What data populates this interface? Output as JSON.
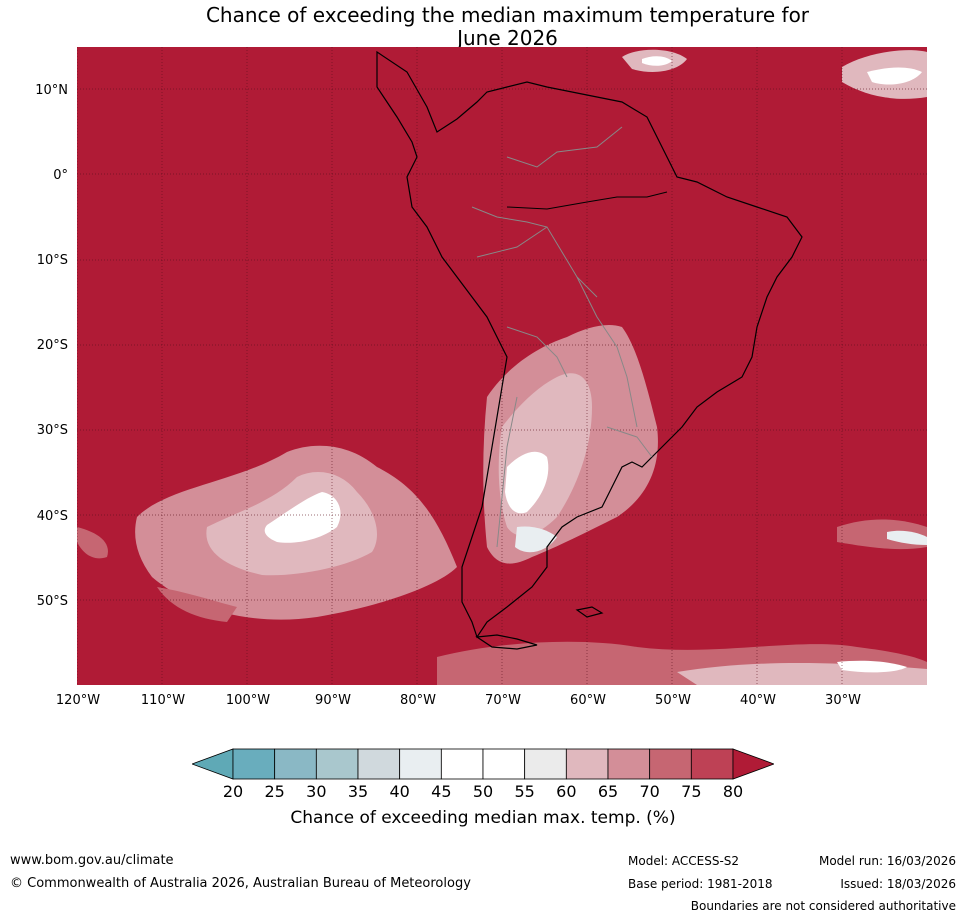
{
  "title": {
    "line1": "Chance of exceeding the median maximum temperature for",
    "line2": "June 2026"
  },
  "map": {
    "latitude_labels": [
      "10°N",
      "0°",
      "10°S",
      "20°S",
      "30°S",
      "40°S",
      "50°S"
    ],
    "longitude_labels": [
      "120°W",
      "110°W",
      "100°W",
      "90°W",
      "80°W",
      "70°W",
      "60°W",
      "50°W",
      "40°W",
      "30°W"
    ],
    "background_color": "#b01b36",
    "gridline_color": "#5a0f1c"
  },
  "colorbar": {
    "ticks": [
      "20",
      "25",
      "30",
      "35",
      "40",
      "45",
      "50",
      "55",
      "60",
      "65",
      "70",
      "75",
      "80"
    ],
    "colors": [
      "#5fa9b6",
      "#69adbd",
      "#8ab8c5",
      "#a9c7cd",
      "#d0d9dd",
      "#e9eef1",
      "#ffffff",
      "#ffffff",
      "#ebebeb",
      "#e0b8be",
      "#d38e98",
      "#c66672",
      "#be4155",
      "#b01b36"
    ],
    "label": "Chance of exceeding median max. temp. (%)"
  },
  "footer": {
    "website": "www.bom.gov.au/climate",
    "copyright": "© Commonwealth of Australia 2026, Australian Bureau of Meteorology",
    "model": "Model: ACCESS-S2",
    "base_period": "Base period: 1981-2018",
    "model_run": "Model run: 16/03/2026",
    "issued": "Issued: 18/03/2026",
    "disclaimer": "Boundaries are not considered authoritative"
  }
}
